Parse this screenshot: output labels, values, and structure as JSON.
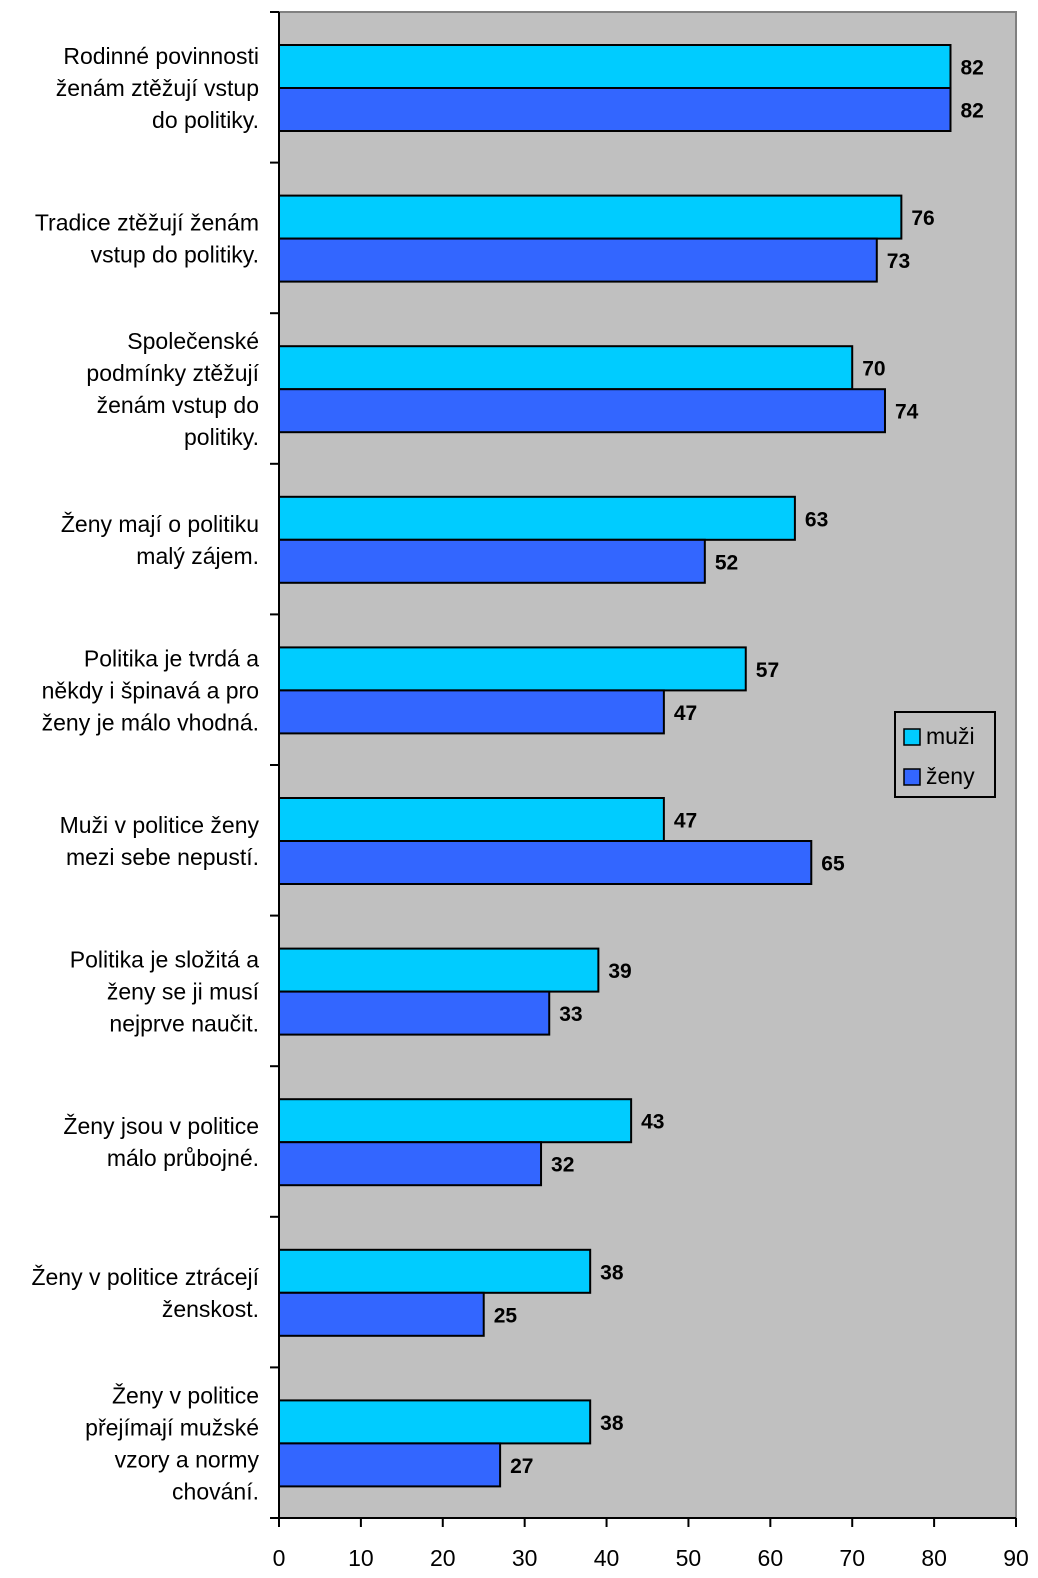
{
  "chart_data": {
    "type": "bar",
    "orientation": "horizontal",
    "categories": [
      [
        "Rodinné povinnosti",
        "ženám ztěžují vstup",
        "do politiky."
      ],
      [
        "Tradice ztěžují ženám",
        "vstup do politiky."
      ],
      [
        "Společenské",
        "podmínky ztěžují",
        "ženám vstup do",
        "politiky."
      ],
      [
        "Ženy mají o politiku",
        "malý zájem."
      ],
      [
        "Politika je tvrdá a",
        "někdy i špinavá a pro",
        "ženy je málo vhodná."
      ],
      [
        "Muži v politice ženy",
        "mezi sebe nepustí."
      ],
      [
        "Politika je složitá a",
        "ženy se ji musí",
        "nejprve naučit."
      ],
      [
        "Ženy jsou v politice",
        "málo průbojné."
      ],
      [
        "Ženy v politice ztrácejí",
        "ženskost."
      ],
      [
        "Ženy v politice",
        "přejímají mužské",
        "vzory a normy",
        "chování."
      ]
    ],
    "series": [
      {
        "name": "muži",
        "color": "#00ccff",
        "values": [
          82,
          76,
          70,
          63,
          57,
          47,
          39,
          43,
          38,
          38
        ]
      },
      {
        "name": "ženy",
        "color": "#3366ff",
        "values": [
          82,
          73,
          74,
          52,
          47,
          65,
          33,
          32,
          25,
          27
        ]
      }
    ],
    "xlim": [
      0,
      90
    ],
    "xticks": [
      0,
      10,
      20,
      30,
      40,
      50,
      60,
      70,
      80,
      90
    ],
    "plot_background": "#c0c0c0",
    "legend_position": "right",
    "grid": false
  }
}
